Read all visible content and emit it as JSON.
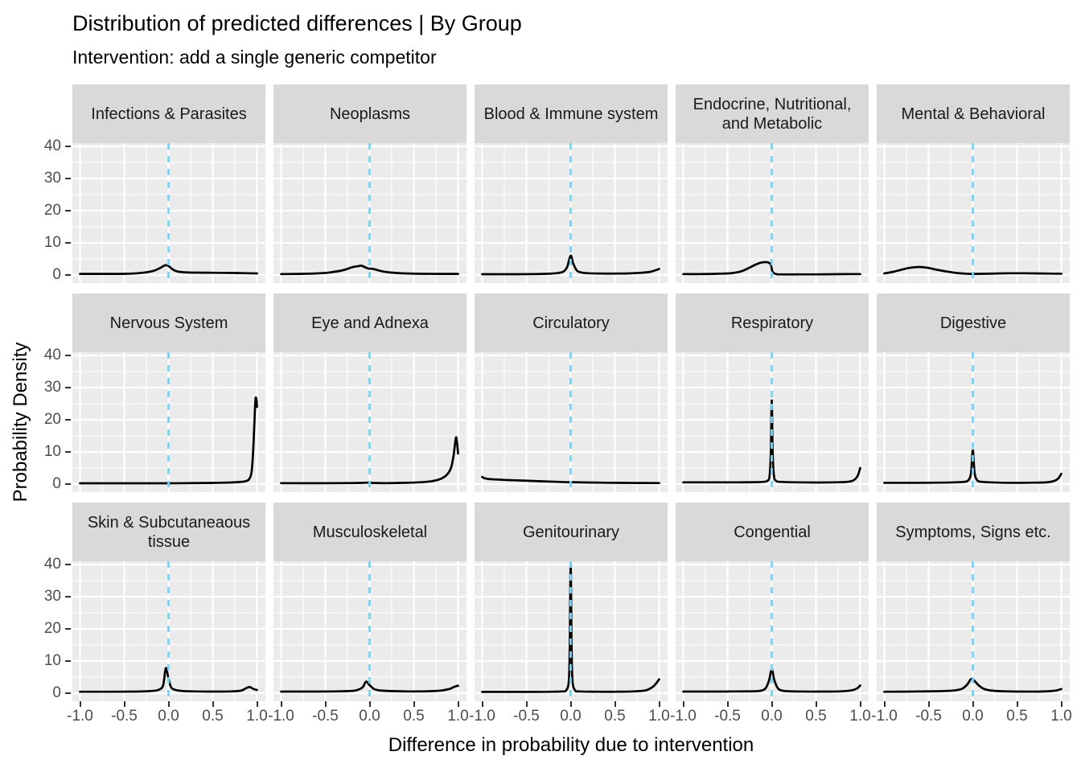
{
  "header": {
    "title": "Distribution of predicted differences | By Group",
    "subtitle": "Intervention: add a single generic competitor"
  },
  "colors": {
    "panel_background": "#ebebeb",
    "strip_background": "#d9d9d9",
    "gridline": "#ffffff",
    "density_curve": "#000000",
    "zero_line": "#87ceeb",
    "tick_text": "#4d4d4d",
    "strip_text": "#1a1a1a",
    "tick_mark": "#333333"
  },
  "chart_data": {
    "type": "line",
    "title": "Distribution of predicted differences | By Group",
    "subtitle": "Intervention: add a single generic competitor",
    "xlabel": "Difference in probability due to intervention",
    "ylabel": "Probability Density",
    "x_ticks": [
      -1.0,
      -0.5,
      0.0,
      0.5,
      1.0
    ],
    "x_tick_labels": [
      "-1.0",
      "-0.5",
      "0.0",
      "0.5",
      "1.0"
    ],
    "y_ticks": [
      0,
      10,
      20,
      30,
      40
    ],
    "y_tick_labels": [
      "0",
      "10",
      "20",
      "30",
      "40"
    ],
    "x_range": [
      -1,
      1
    ],
    "y_range": [
      0,
      40
    ],
    "x_minor_breaks": [
      -0.75,
      -0.25,
      0.25,
      0.75
    ],
    "y_minor_breaks": [
      5,
      15,
      25,
      35
    ],
    "grid": "on",
    "reference_vline_x": 0,
    "facets": [
      {
        "label": "Infections & Parasites",
        "curve": [
          [
            -1,
            0.35
          ],
          [
            -0.8,
            0.35
          ],
          [
            -0.6,
            0.35
          ],
          [
            -0.45,
            0.4
          ],
          [
            -0.35,
            0.55
          ],
          [
            -0.25,
            0.85
          ],
          [
            -0.17,
            1.3
          ],
          [
            -0.1,
            2.1
          ],
          [
            -0.05,
            2.9
          ],
          [
            -0.02,
            3.05
          ],
          [
            0.01,
            2.6
          ],
          [
            0.05,
            1.7
          ],
          [
            0.1,
            1.1
          ],
          [
            0.18,
            0.85
          ],
          [
            0.3,
            0.75
          ],
          [
            0.5,
            0.7
          ],
          [
            0.7,
            0.65
          ],
          [
            0.9,
            0.55
          ],
          [
            1,
            0.5
          ]
        ]
      },
      {
        "label": "Neoplasms",
        "curve": [
          [
            -1,
            0.3
          ],
          [
            -0.8,
            0.35
          ],
          [
            -0.6,
            0.5
          ],
          [
            -0.45,
            0.8
          ],
          [
            -0.3,
            1.5
          ],
          [
            -0.2,
            2.4
          ],
          [
            -0.12,
            2.8
          ],
          [
            -0.09,
            2.9
          ],
          [
            -0.05,
            2.4
          ],
          [
            -0.01,
            2.0
          ],
          [
            0.03,
            1.95
          ],
          [
            0.08,
            1.6
          ],
          [
            0.15,
            1.1
          ],
          [
            0.25,
            0.75
          ],
          [
            0.4,
            0.5
          ],
          [
            0.6,
            0.38
          ],
          [
            0.8,
            0.35
          ],
          [
            1,
            0.35
          ]
        ]
      },
      {
        "label": "Blood & Immune system",
        "curve": [
          [
            -1,
            0.25
          ],
          [
            -0.7,
            0.25
          ],
          [
            -0.4,
            0.3
          ],
          [
            -0.25,
            0.4
          ],
          [
            -0.15,
            0.6
          ],
          [
            -0.08,
            1.1
          ],
          [
            -0.04,
            2.5
          ],
          [
            0,
            6.0
          ],
          [
            0.03,
            3.5
          ],
          [
            0.07,
            1.4
          ],
          [
            0.12,
            0.8
          ],
          [
            0.2,
            0.55
          ],
          [
            0.35,
            0.45
          ],
          [
            0.5,
            0.45
          ],
          [
            0.65,
            0.5
          ],
          [
            0.8,
            0.7
          ],
          [
            0.9,
            1.0
          ],
          [
            0.97,
            1.6
          ],
          [
            1,
            1.9
          ]
        ]
      },
      {
        "label": "Endocrine, Nutritional,\nand Metabolic",
        "curve": [
          [
            -1,
            0.3
          ],
          [
            -0.8,
            0.3
          ],
          [
            -0.6,
            0.4
          ],
          [
            -0.45,
            0.6
          ],
          [
            -0.35,
            1.1
          ],
          [
            -0.28,
            1.9
          ],
          [
            -0.2,
            3.0
          ],
          [
            -0.13,
            3.8
          ],
          [
            -0.08,
            4.0
          ],
          [
            -0.04,
            3.9
          ],
          [
            -0.01,
            3.2
          ],
          [
            0.01,
            1.0
          ],
          [
            0.05,
            0.3
          ],
          [
            0.1,
            0.2
          ],
          [
            0.3,
            0.2
          ],
          [
            0.5,
            0.2
          ],
          [
            0.7,
            0.25
          ],
          [
            0.9,
            0.3
          ],
          [
            1,
            0.3
          ]
        ]
      },
      {
        "label": "Mental & Behavioral",
        "curve": [
          [
            -1,
            0.5
          ],
          [
            -0.9,
            1.0
          ],
          [
            -0.8,
            1.7
          ],
          [
            -0.7,
            2.3
          ],
          [
            -0.6,
            2.5
          ],
          [
            -0.5,
            2.2
          ],
          [
            -0.4,
            1.6
          ],
          [
            -0.3,
            1.1
          ],
          [
            -0.2,
            0.7
          ],
          [
            -0.1,
            0.45
          ],
          [
            0,
            0.35
          ],
          [
            0.15,
            0.4
          ],
          [
            0.3,
            0.5
          ],
          [
            0.5,
            0.55
          ],
          [
            0.7,
            0.5
          ],
          [
            0.85,
            0.45
          ],
          [
            1,
            0.4
          ]
        ]
      },
      {
        "label": "Nervous System",
        "curve": [
          [
            -1,
            0.25
          ],
          [
            -0.5,
            0.25
          ],
          [
            -0.2,
            0.25
          ],
          [
            0,
            0.25
          ],
          [
            0.2,
            0.3
          ],
          [
            0.4,
            0.35
          ],
          [
            0.55,
            0.4
          ],
          [
            0.7,
            0.5
          ],
          [
            0.8,
            0.65
          ],
          [
            0.87,
            0.9
          ],
          [
            0.91,
            1.5
          ],
          [
            0.94,
            4
          ],
          [
            0.96,
            12
          ],
          [
            0.975,
            22
          ],
          [
            0.985,
            26.7
          ],
          [
            0.995,
            26
          ],
          [
            1,
            24
          ]
        ]
      },
      {
        "label": "Eye and Adnexa",
        "curve": [
          [
            -1,
            0.3
          ],
          [
            -0.7,
            0.28
          ],
          [
            -0.4,
            0.3
          ],
          [
            -0.15,
            0.35
          ],
          [
            -0.02,
            0.45
          ],
          [
            0.05,
            0.35
          ],
          [
            0.2,
            0.3
          ],
          [
            0.4,
            0.4
          ],
          [
            0.55,
            0.55
          ],
          [
            0.7,
            0.9
          ],
          [
            0.8,
            1.6
          ],
          [
            0.87,
            2.8
          ],
          [
            0.92,
            5
          ],
          [
            0.95,
            9
          ],
          [
            0.97,
            13.5
          ],
          [
            0.98,
            14.5
          ],
          [
            0.99,
            12.5
          ],
          [
            1,
            9.5
          ]
        ]
      },
      {
        "label": "Circulatory",
        "curve": [
          [
            -1,
            2.25
          ],
          [
            -0.98,
            1.9
          ],
          [
            -0.93,
            1.6
          ],
          [
            -0.85,
            1.45
          ],
          [
            -0.75,
            1.3
          ],
          [
            -0.6,
            1.15
          ],
          [
            -0.45,
            1.0
          ],
          [
            -0.3,
            0.85
          ],
          [
            -0.15,
            0.7
          ],
          [
            0,
            0.6
          ],
          [
            0.2,
            0.5
          ],
          [
            0.4,
            0.42
          ],
          [
            0.6,
            0.38
          ],
          [
            0.8,
            0.35
          ],
          [
            1,
            0.33
          ]
        ]
      },
      {
        "label": "Respiratory",
        "curve": [
          [
            -1,
            0.55
          ],
          [
            -0.7,
            0.55
          ],
          [
            -0.4,
            0.55
          ],
          [
            -0.2,
            0.6
          ],
          [
            -0.1,
            0.7
          ],
          [
            -0.05,
            1.0
          ],
          [
            -0.025,
            2.5
          ],
          [
            -0.01,
            10
          ],
          [
            0,
            26
          ],
          [
            0.01,
            10
          ],
          [
            0.025,
            2.5
          ],
          [
            0.05,
            1.0
          ],
          [
            0.1,
            0.7
          ],
          [
            0.3,
            0.55
          ],
          [
            0.5,
            0.5
          ],
          [
            0.7,
            0.55
          ],
          [
            0.85,
            0.7
          ],
          [
            0.92,
            1.1
          ],
          [
            0.97,
            2.5
          ],
          [
            1,
            5
          ]
        ]
      },
      {
        "label": "Digestive",
        "curve": [
          [
            -1,
            0.4
          ],
          [
            -0.7,
            0.4
          ],
          [
            -0.4,
            0.45
          ],
          [
            -0.2,
            0.55
          ],
          [
            -0.1,
            0.7
          ],
          [
            -0.05,
            1.2
          ],
          [
            -0.02,
            3.5
          ],
          [
            0,
            10.5
          ],
          [
            0.02,
            3.5
          ],
          [
            0.05,
            1.2
          ],
          [
            0.1,
            0.7
          ],
          [
            0.3,
            0.45
          ],
          [
            0.5,
            0.4
          ],
          [
            0.7,
            0.45
          ],
          [
            0.85,
            0.6
          ],
          [
            0.93,
            1.1
          ],
          [
            0.97,
            1.9
          ],
          [
            1,
            3.2
          ]
        ]
      },
      {
        "label": "Skin & Subcutaneaous\ntissue",
        "curve": [
          [
            -1,
            0.45
          ],
          [
            -0.7,
            0.45
          ],
          [
            -0.4,
            0.5
          ],
          [
            -0.25,
            0.6
          ],
          [
            -0.15,
            0.8
          ],
          [
            -0.1,
            1.2
          ],
          [
            -0.06,
            2.5
          ],
          [
            -0.03,
            7.8
          ],
          [
            0,
            4.5
          ],
          [
            0.03,
            1.8
          ],
          [
            0.08,
            1.0
          ],
          [
            0.15,
            0.7
          ],
          [
            0.3,
            0.55
          ],
          [
            0.5,
            0.5
          ],
          [
            0.7,
            0.55
          ],
          [
            0.82,
            0.8
          ],
          [
            0.88,
            1.6
          ],
          [
            0.92,
            1.9
          ],
          [
            0.96,
            1.3
          ],
          [
            1,
            1.0
          ]
        ]
      },
      {
        "label": "Musculoskeletal",
        "curve": [
          [
            -1,
            0.5
          ],
          [
            -0.7,
            0.5
          ],
          [
            -0.4,
            0.55
          ],
          [
            -0.25,
            0.65
          ],
          [
            -0.15,
            0.9
          ],
          [
            -0.08,
            1.8
          ],
          [
            -0.04,
            3.6
          ],
          [
            0,
            2.5
          ],
          [
            0.05,
            1.3
          ],
          [
            0.12,
            0.85
          ],
          [
            0.25,
            0.65
          ],
          [
            0.45,
            0.55
          ],
          [
            0.65,
            0.6
          ],
          [
            0.8,
            0.8
          ],
          [
            0.9,
            1.3
          ],
          [
            0.95,
            1.9
          ],
          [
            0.98,
            2.2
          ],
          [
            1,
            2.3
          ]
        ]
      },
      {
        "label": "Genitourinary",
        "curve": [
          [
            -1,
            0.4
          ],
          [
            -0.7,
            0.4
          ],
          [
            -0.4,
            0.4
          ],
          [
            -0.2,
            0.45
          ],
          [
            -0.1,
            0.55
          ],
          [
            -0.05,
            0.9
          ],
          [
            -0.02,
            4
          ],
          [
            -0.01,
            15
          ],
          [
            0,
            40.2
          ],
          [
            0.01,
            15
          ],
          [
            0.02,
            4
          ],
          [
            0.05,
            0.9
          ],
          [
            0.1,
            0.55
          ],
          [
            0.3,
            0.45
          ],
          [
            0.5,
            0.45
          ],
          [
            0.7,
            0.55
          ],
          [
            0.85,
            0.9
          ],
          [
            0.93,
            2.0
          ],
          [
            0.97,
            3.2
          ],
          [
            1,
            4.3
          ]
        ]
      },
      {
        "label": "Congential",
        "curve": [
          [
            -1,
            0.5
          ],
          [
            -0.7,
            0.5
          ],
          [
            -0.4,
            0.55
          ],
          [
            -0.2,
            0.6
          ],
          [
            -0.12,
            0.8
          ],
          [
            -0.07,
            1.5
          ],
          [
            -0.03,
            4
          ],
          [
            0,
            7.4
          ],
          [
            0.03,
            4
          ],
          [
            0.07,
            1.5
          ],
          [
            0.12,
            0.8
          ],
          [
            0.2,
            0.6
          ],
          [
            0.4,
            0.5
          ],
          [
            0.6,
            0.5
          ],
          [
            0.75,
            0.55
          ],
          [
            0.85,
            0.7
          ],
          [
            0.92,
            1.0
          ],
          [
            0.97,
            1.6
          ],
          [
            1,
            2.4
          ]
        ]
      },
      {
        "label": "Symptoms, Signs etc.",
        "curve": [
          [
            -1,
            0.45
          ],
          [
            -0.7,
            0.5
          ],
          [
            -0.45,
            0.6
          ],
          [
            -0.3,
            0.7
          ],
          [
            -0.2,
            0.9
          ],
          [
            -0.12,
            1.4
          ],
          [
            -0.06,
            2.8
          ],
          [
            -0.02,
            4.4
          ],
          [
            0.02,
            3.8
          ],
          [
            0.06,
            2.6
          ],
          [
            0.12,
            1.4
          ],
          [
            0.2,
            0.85
          ],
          [
            0.35,
            0.6
          ],
          [
            0.55,
            0.5
          ],
          [
            0.75,
            0.5
          ],
          [
            0.88,
            0.65
          ],
          [
            0.95,
            0.9
          ],
          [
            1,
            1.3
          ]
        ]
      }
    ]
  }
}
